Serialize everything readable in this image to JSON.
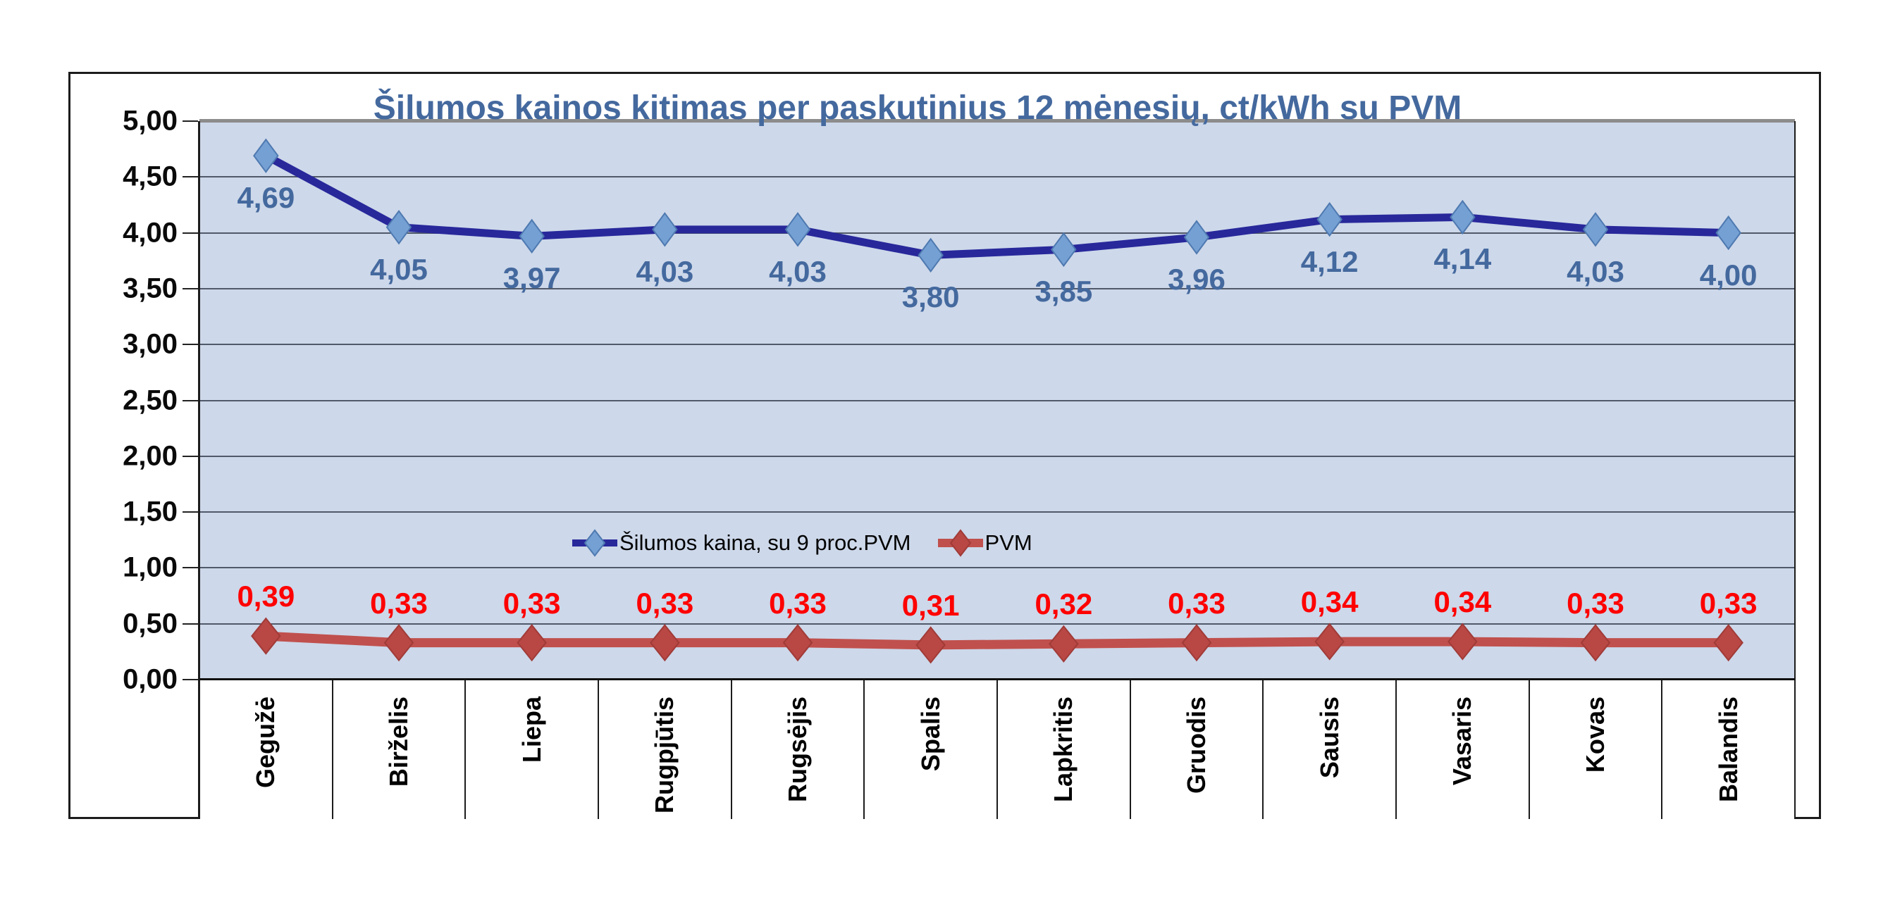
{
  "chart_data": {
    "type": "line",
    "title": "Šilumos kainos kitimas per paskutinius 12 mėnesių, ct/kWh su PVM",
    "title_color": "#44699E",
    "plot_bg": "#CDD8EA",
    "grid": true,
    "legend_position": "inside-center-lower",
    "categories": [
      "Gegužė",
      "Birželis",
      "Liepa",
      "Rugpjūtis",
      "Rugsėjis",
      "Spalis",
      "Lapkritis",
      "Gruodis",
      "Sausis",
      "Vasaris",
      "Kovas",
      "Balandis"
    ],
    "y_axis": {
      "min": 0,
      "max": 5,
      "step": 0.5,
      "tick_labels": [
        "5,00",
        "4,50",
        "4,00",
        "3,50",
        "3,00",
        "2,50",
        "2,00",
        "1,50",
        "1,00",
        "0,50",
        "0,00"
      ]
    },
    "series": [
      {
        "name": "Šilumos kaina, su 9 proc.PVM",
        "values": [
          4.69,
          4.05,
          3.97,
          4.03,
          4.03,
          3.8,
          3.85,
          3.96,
          4.12,
          4.14,
          4.03,
          4.0
        ],
        "labels": [
          "4,69",
          "4,05",
          "3,97",
          "4,03",
          "4,03",
          "3,80",
          "3,85",
          "3,96",
          "4,12",
          "4,14",
          "4,03",
          "4,00"
        ],
        "line_color": "#28289B",
        "marker_color": "#74A0D4",
        "marker_edge": "#4E79B0",
        "label_color": "#44699E",
        "label_side": "below"
      },
      {
        "name": "PVM",
        "values": [
          0.39,
          0.33,
          0.33,
          0.33,
          0.33,
          0.31,
          0.32,
          0.33,
          0.34,
          0.34,
          0.33,
          0.33
        ],
        "labels": [
          "0,39",
          "0,33",
          "0,33",
          "0,33",
          "0,33",
          "0,31",
          "0,32",
          "0,33",
          "0,34",
          "0,34",
          "0,33",
          "0,33"
        ],
        "line_color": "#C0504D",
        "marker_color": "#B94743",
        "marker_edge": "#A03B38",
        "label_color": "#FF0000",
        "label_side": "above"
      }
    ]
  }
}
